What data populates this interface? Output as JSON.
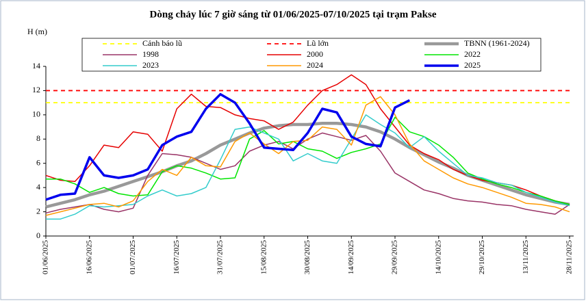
{
  "chart_data": {
    "type": "line",
    "title": "Dòng chảy lúc 7 giờ sáng từ 01/06/2025-07/10/2025 tại trạm Pakse",
    "y_label": "H (m)",
    "x": [
      "01/06/2025",
      "06/06/2025",
      "11/06/2025",
      "16/06/2025",
      "21/06/2025",
      "26/06/2025",
      "01/07/2025",
      "06/07/2025",
      "11/07/2025",
      "16/07/2025",
      "21/07/2025",
      "26/07/2025",
      "31/07/2025",
      "05/08/2025",
      "10/08/2025",
      "15/08/2025",
      "20/08/2025",
      "25/08/2025",
      "30/08/2025",
      "04/09/2025",
      "09/09/2025",
      "14/09/2025",
      "19/09/2025",
      "24/09/2025",
      "29/09/2025",
      "04/10/2025",
      "09/10/2025",
      "14/10/2025",
      "19/10/2025",
      "24/10/2025",
      "29/10/2025",
      "03/11/2025",
      "08/11/2025",
      "13/11/2025",
      "18/11/2025",
      "23/11/2025",
      "28/11/2025"
    ],
    "xlim": [
      "01/06/2025",
      "28/11/2025"
    ],
    "xticks": [
      "01/06/2025",
      "16/06/2025",
      "01/07/2025",
      "16/07/2025",
      "31/07/2025",
      "15/08/2025",
      "30/08/2025",
      "14/09/2025",
      "29/09/2025",
      "14/10/2025",
      "29/10/2025",
      "13/11/2025",
      "28/11/2025"
    ],
    "ylim": [
      0,
      14
    ],
    "yticks": [
      0,
      2,
      4,
      6,
      8,
      10,
      12,
      14
    ],
    "grid": false,
    "reference_lines": [
      {
        "name": "Cảnh báo lũ",
        "value": 11,
        "color": "#ffff00"
      },
      {
        "name": "Lũ lớn",
        "value": 12,
        "color": "#ff0000"
      }
    ],
    "series": [
      {
        "name": "TBNN (1961-2024)",
        "color": "#999999",
        "line_width": 4.5,
        "values": [
          2.4,
          2.7,
          3.0,
          3.4,
          3.7,
          4.1,
          4.5,
          4.9,
          5.3,
          5.8,
          6.2,
          6.8,
          7.5,
          8.0,
          8.5,
          8.9,
          9.1,
          9.2,
          9.2,
          9.3,
          9.3,
          9.2,
          9.0,
          8.6,
          8.0,
          7.3,
          6.7,
          6.1,
          5.6,
          5.0,
          4.6,
          4.2,
          3.8,
          3.4,
          3.1,
          2.8,
          2.6
        ]
      },
      {
        "name": "1998",
        "color": "#993366",
        "line_width": 1.5,
        "values": [
          1.9,
          2.2,
          2.4,
          2.6,
          2.2,
          2.0,
          2.3,
          5.0,
          6.8,
          6.7,
          6.5,
          6.0,
          5.5,
          5.8,
          7.0,
          7.5,
          7.8,
          7.2,
          8.0,
          8.5,
          8.2,
          7.9,
          8.3,
          7.0,
          5.2,
          4.5,
          3.8,
          3.5,
          3.1,
          2.9,
          2.8,
          2.6,
          2.5,
          2.2,
          2.0,
          1.8,
          2.6
        ]
      },
      {
        "name": "2000",
        "color": "#e60000",
        "line_width": 1.5,
        "values": [
          5.0,
          4.6,
          4.5,
          5.8,
          7.5,
          7.3,
          8.6,
          8.4,
          7.0,
          10.5,
          11.7,
          10.7,
          10.6,
          10.0,
          9.7,
          9.5,
          8.8,
          9.4,
          10.8,
          12.0,
          12.5,
          13.3,
          12.5,
          10.5,
          9.0,
          7.5,
          6.8,
          6.3,
          5.5,
          5.0,
          4.6,
          4.4,
          4.2,
          3.8,
          3.3,
          2.9,
          2.6
        ]
      },
      {
        "name": "2022",
        "color": "#00e600",
        "line_width": 1.5,
        "values": [
          4.7,
          4.7,
          4.3,
          3.6,
          4.0,
          3.5,
          3.3,
          3.4,
          5.3,
          5.8,
          5.6,
          5.2,
          4.7,
          4.8,
          8.0,
          8.7,
          7.6,
          7.8,
          7.2,
          7.0,
          6.4,
          6.9,
          7.2,
          7.6,
          9.8,
          8.6,
          8.2,
          7.5,
          6.5,
          5.2,
          4.7,
          4.3,
          4.0,
          3.6,
          3.3,
          2.9,
          2.6
        ]
      },
      {
        "name": "2023",
        "color": "#33cccc",
        "line_width": 1.5,
        "values": [
          1.4,
          1.4,
          1.8,
          2.5,
          2.4,
          2.5,
          2.6,
          3.3,
          3.8,
          3.3,
          3.5,
          4.0,
          6.3,
          8.8,
          9.0,
          8.5,
          8.0,
          6.2,
          6.8,
          6.2,
          6.0,
          8.0,
          10.0,
          9.2,
          8.5,
          7.3,
          8.2,
          7.0,
          6.0,
          5.0,
          4.8,
          4.4,
          4.2,
          3.6,
          3.2,
          2.8,
          2.5
        ]
      },
      {
        "name": "2024",
        "color": "#ff9900",
        "line_width": 1.5,
        "values": [
          1.7,
          2.0,
          2.3,
          2.6,
          2.7,
          2.4,
          2.9,
          4.5,
          5.5,
          5.0,
          6.5,
          5.8,
          5.7,
          7.8,
          8.5,
          7.6,
          6.8,
          7.8,
          7.9,
          9.0,
          8.8,
          7.5,
          10.8,
          11.5,
          10.0,
          7.6,
          6.2,
          5.5,
          4.8,
          4.3,
          4.0,
          3.6,
          3.2,
          2.7,
          2.6,
          2.4,
          2.0
        ]
      },
      {
        "name": "2025",
        "color": "#0000ee",
        "line_width": 3.5,
        "values": [
          3.0,
          3.4,
          3.5,
          6.5,
          5.0,
          4.8,
          5.0,
          5.5,
          7.5,
          8.2,
          8.6,
          10.5,
          11.7,
          11.0,
          9.3,
          7.3,
          7.2,
          7.1,
          8.5,
          10.5,
          10.2,
          8.2,
          7.6,
          7.4,
          10.6,
          11.2,
          null,
          null,
          null,
          null,
          null,
          null,
          null,
          null,
          null,
          null,
          null
        ]
      }
    ]
  }
}
